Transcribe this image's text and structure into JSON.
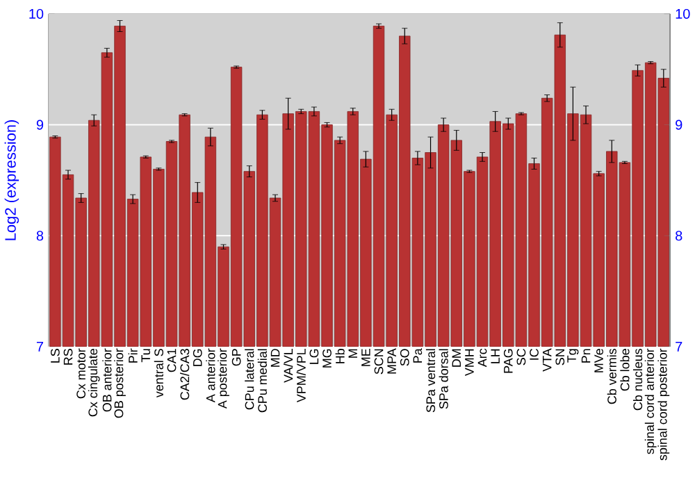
{
  "chart_data": {
    "type": "bar",
    "ylabel": "Log2 (expression)",
    "color": "#b83232",
    "categories": [
      "LS",
      "RS",
      "Cx motor",
      "Cx cingulate",
      "OB anterior",
      "OB posterior",
      "Pir",
      "Tu",
      "ventral S",
      "CA1",
      "CA2/CA3",
      "DG",
      "A anterior",
      "A posterior",
      "GP",
      "CPu lateral",
      "CPu medial",
      "MD",
      "VA/VL",
      "VPM/VPL",
      "LG",
      "MG",
      "Hb",
      "M",
      "ME",
      "SCN",
      "MPA",
      "SO",
      "Pa",
      "SPa ventral",
      "SPa dorsal",
      "DM",
      "VMH",
      "Arc",
      "LH",
      "PAG",
      "SC",
      "IC",
      "VTA",
      "SN",
      "Tg",
      "Pn",
      "MVe",
      "Cb vermis",
      "Cb lobe",
      "Cb nucleus",
      "spinal cord anterior",
      "spinal cord posterior"
    ],
    "values": [
      8.89,
      8.55,
      8.34,
      9.04,
      9.65,
      9.89,
      8.33,
      8.71,
      8.6,
      8.85,
      9.09,
      8.39,
      8.89,
      7.9,
      9.52,
      8.58,
      9.09,
      8.34,
      9.1,
      9.12,
      9.12,
      9.0,
      8.86,
      9.12,
      8.69,
      9.89,
      9.09,
      9.8,
      8.7,
      8.75,
      9.0,
      8.86,
      8.58,
      8.71,
      9.03,
      9.01,
      9.1,
      8.65,
      9.24,
      9.81,
      9.1,
      9.09,
      8.56,
      8.76,
      8.66,
      9.49,
      9.56,
      9.42
    ],
    "errors": [
      0.01,
      0.04,
      0.04,
      0.05,
      0.04,
      0.05,
      0.04,
      0.01,
      0.01,
      0.01,
      0.01,
      0.09,
      0.08,
      0.02,
      0.01,
      0.05,
      0.04,
      0.03,
      0.14,
      0.02,
      0.04,
      0.02,
      0.03,
      0.03,
      0.07,
      0.02,
      0.05,
      0.07,
      0.06,
      0.14,
      0.06,
      0.09,
      0.01,
      0.04,
      0.09,
      0.05,
      0.01,
      0.05,
      0.03,
      0.11,
      0.24,
      0.08,
      0.02,
      0.1,
      0.01,
      0.05,
      0.01,
      0.08
    ],
    "ylim": [
      7,
      10
    ],
    "yticks": [
      7,
      8,
      9,
      10
    ],
    "y2lim": [
      7,
      10
    ],
    "y2ticks": [
      7,
      8,
      9,
      10
    ],
    "grid": "y"
  }
}
